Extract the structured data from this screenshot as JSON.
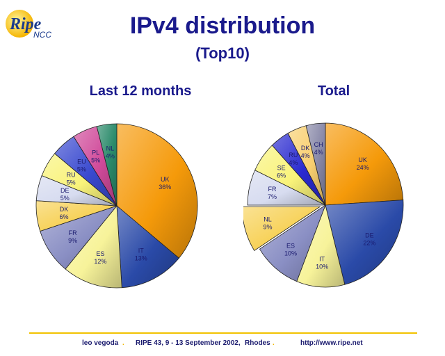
{
  "logo": {
    "text_main": "Ripe",
    "text_sub": "NCC"
  },
  "title": "IPv4 distribution",
  "subtitle": "(Top10)",
  "chart_data": [
    {
      "type": "pie",
      "title": "Last 12 months",
      "labels": [
        "UK",
        "IT",
        "ES",
        "FR",
        "DK",
        "DE",
        "RU",
        "EU",
        "PL",
        "NL"
      ],
      "values": [
        36,
        13,
        12,
        9,
        6,
        5,
        5,
        5,
        5,
        4
      ],
      "value_labels": [
        "36%",
        "13%",
        "12%",
        "9%",
        "6%",
        "5%",
        "5%",
        "5%",
        "5%",
        "4%"
      ],
      "colors": [
        "#f59a0a",
        "#2a4aa8",
        "#f7f39a",
        "#8a8fc4",
        "#f7d25a",
        "#d7dcf0",
        "#f9f37a",
        "#3a4ad0",
        "#d04a9a",
        "#2a8a6a"
      ]
    },
    {
      "type": "pie",
      "title": "Total",
      "labels": [
        "UK",
        "DE",
        "IT",
        "ES",
        "NL",
        "FR",
        "SE",
        "RU",
        "DK",
        "CH"
      ],
      "values": [
        24,
        22,
        10,
        10,
        9,
        7,
        6,
        4,
        4,
        4
      ],
      "value_labels": [
        "24%",
        "22%",
        "10%",
        "10%",
        "9%",
        "7%",
        "6%",
        "4%",
        "4%",
        "4%"
      ],
      "colors": [
        "#f59a0a",
        "#2a4aa8",
        "#f7f39a",
        "#8a8fc4",
        "#f7d25a",
        "#d7dcf0",
        "#f9f37a",
        "#2a2ad0",
        "#f9d070",
        "#8888a8"
      ]
    }
  ],
  "footer": {
    "author": "leo vegoda",
    "event": "RIPE 43, 9 - 13 September 2002,",
    "place": "Rhodes",
    "url": "http://www.ripe.net",
    "separator": "."
  }
}
